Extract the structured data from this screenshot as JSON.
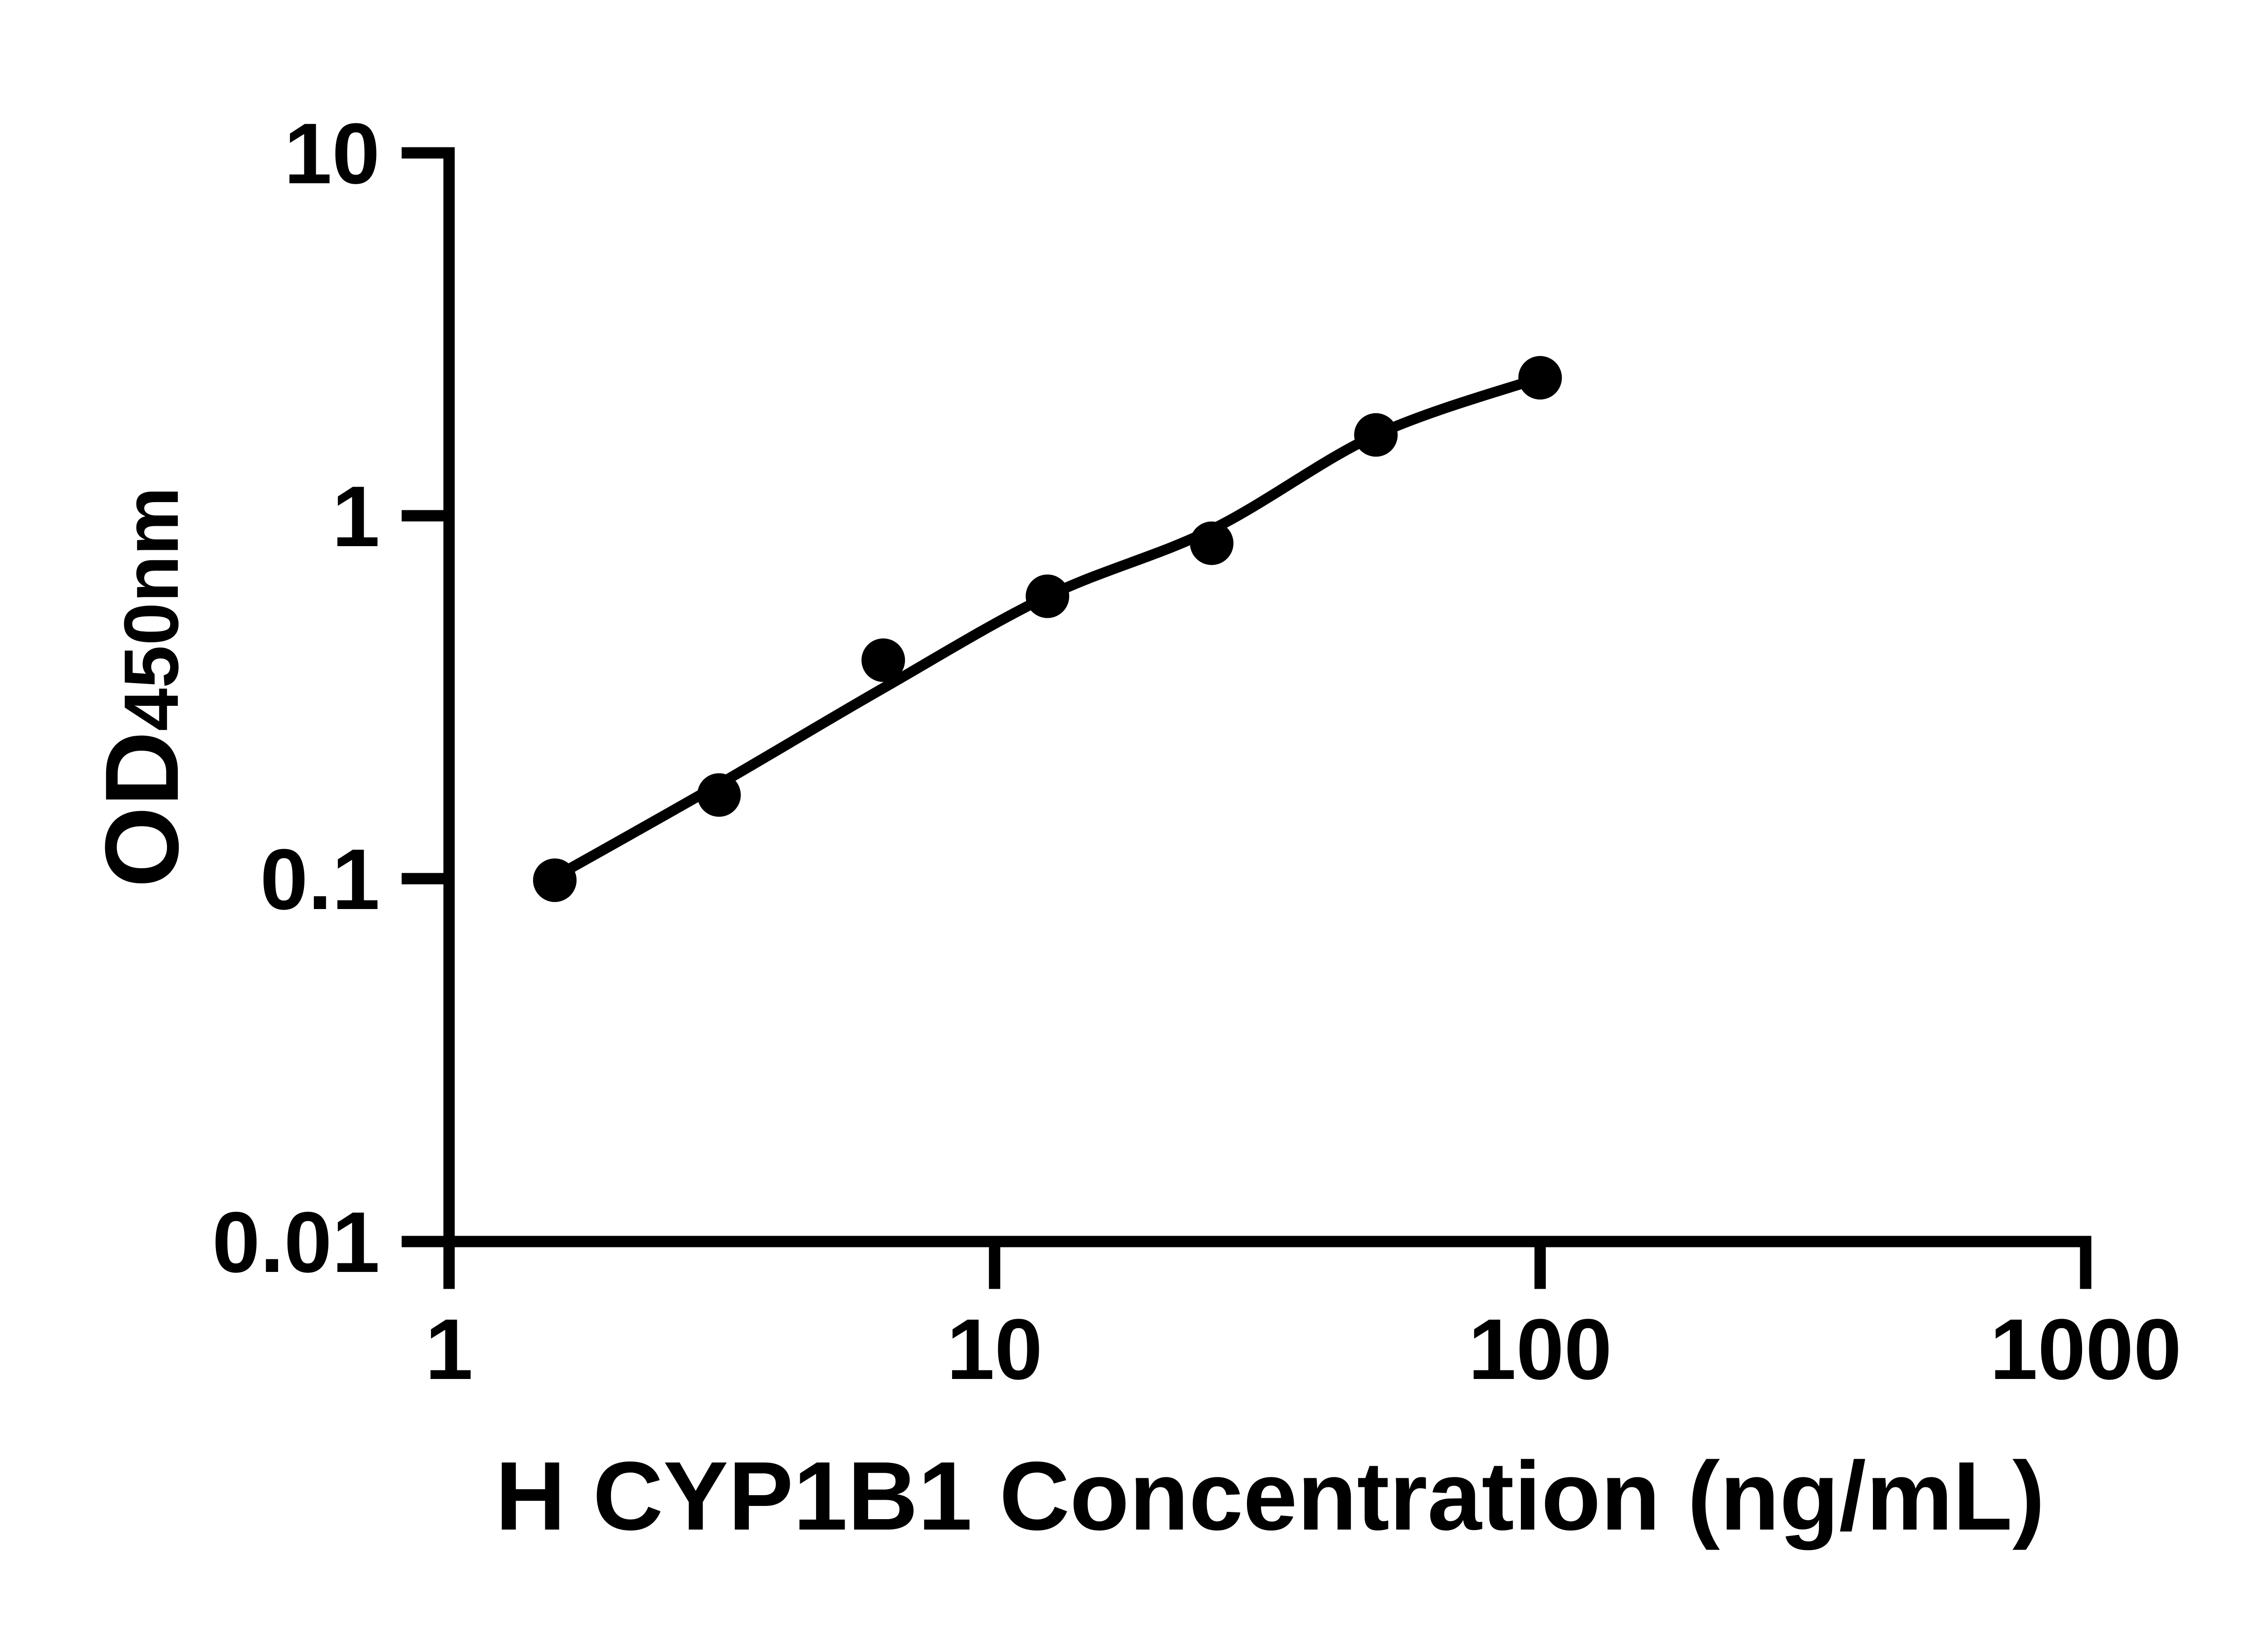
{
  "figure": {
    "background_color": "#ffffff",
    "ink_color": "#000000"
  },
  "chart_data": {
    "type": "scatter",
    "title": "",
    "xlabel": "H CYP1B1 Concentration (ng/mL)",
    "ylabel": "OD",
    "ylabel_subscript": "450nm",
    "x_scale": "log",
    "y_scale": "log",
    "xlim": [
      1,
      1000
    ],
    "ylim": [
      0.01,
      10
    ],
    "x_ticks": [
      1,
      10,
      100,
      1000
    ],
    "x_tick_labels": [
      "1",
      "10",
      "100",
      "1000"
    ],
    "y_ticks": [
      10,
      1,
      0.1,
      0.01
    ],
    "y_tick_labels": [
      "10",
      "1",
      "0.1",
      "0.01"
    ],
    "grid": false,
    "legend_position": "none",
    "series": [
      {
        "name": "standard-points",
        "kind": "scatter",
        "marker": "filled-circle",
        "color": "#000000",
        "x": [
          1.5625,
          3.125,
          6.25,
          12.5,
          25,
          50,
          100
        ],
        "y": [
          0.099,
          0.17,
          0.4,
          0.6,
          0.84,
          1.67,
          2.4
        ]
      },
      {
        "name": "fitted-curve",
        "kind": "line",
        "color": "#000000",
        "x": [
          1.5625,
          3.125,
          6.25,
          12.5,
          25,
          50,
          100
        ],
        "y": [
          0.101,
          0.182,
          0.335,
          0.6,
          0.916,
          1.67,
          2.4
        ]
      }
    ]
  }
}
